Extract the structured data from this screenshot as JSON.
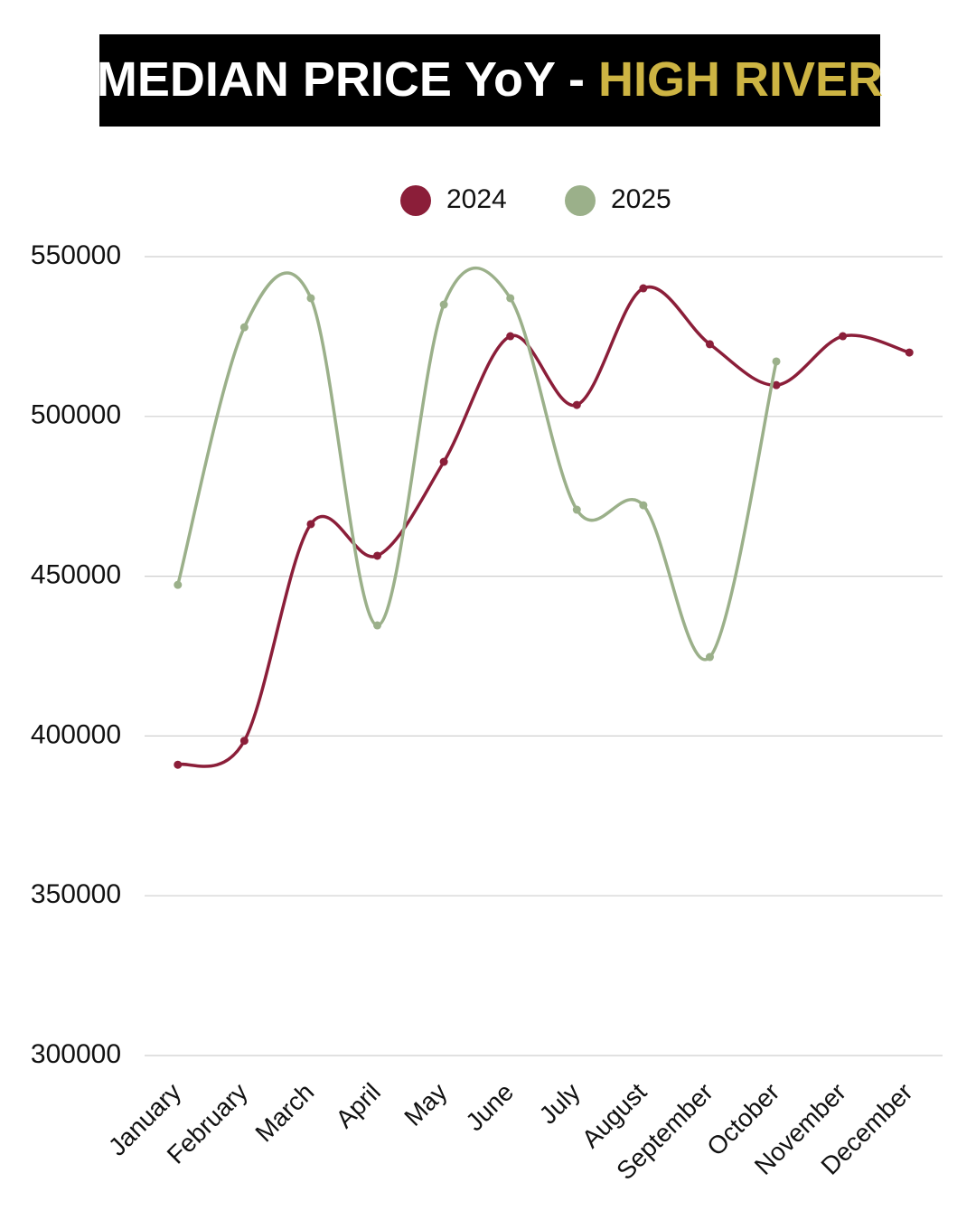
{
  "chart_data": {
    "type": "line",
    "title": "MEDIAN PRICE YoY -",
    "title_highlight": "HIGH RIVER",
    "categories": [
      "January",
      "February",
      "March",
      "April",
      "May",
      "June",
      "July",
      "August",
      "September",
      "October",
      "November",
      "December"
    ],
    "series": [
      {
        "name": "2024",
        "color": "#8b1e39",
        "values": [
          391000,
          398500,
          466300,
          456400,
          485800,
          525100,
          503600,
          540100,
          522600,
          509800,
          525100,
          520000
        ]
      },
      {
        "name": "2025",
        "color": "#9bb08a",
        "values": [
          447300,
          527900,
          537000,
          434600,
          535000,
          537000,
          470800,
          472200,
          424700,
          517200,
          null,
          null
        ]
      }
    ],
    "ylim": [
      300000,
      550000
    ],
    "yticks": [
      300000,
      350000,
      400000,
      450000,
      500000,
      550000
    ],
    "grid": true,
    "legend": "top"
  }
}
